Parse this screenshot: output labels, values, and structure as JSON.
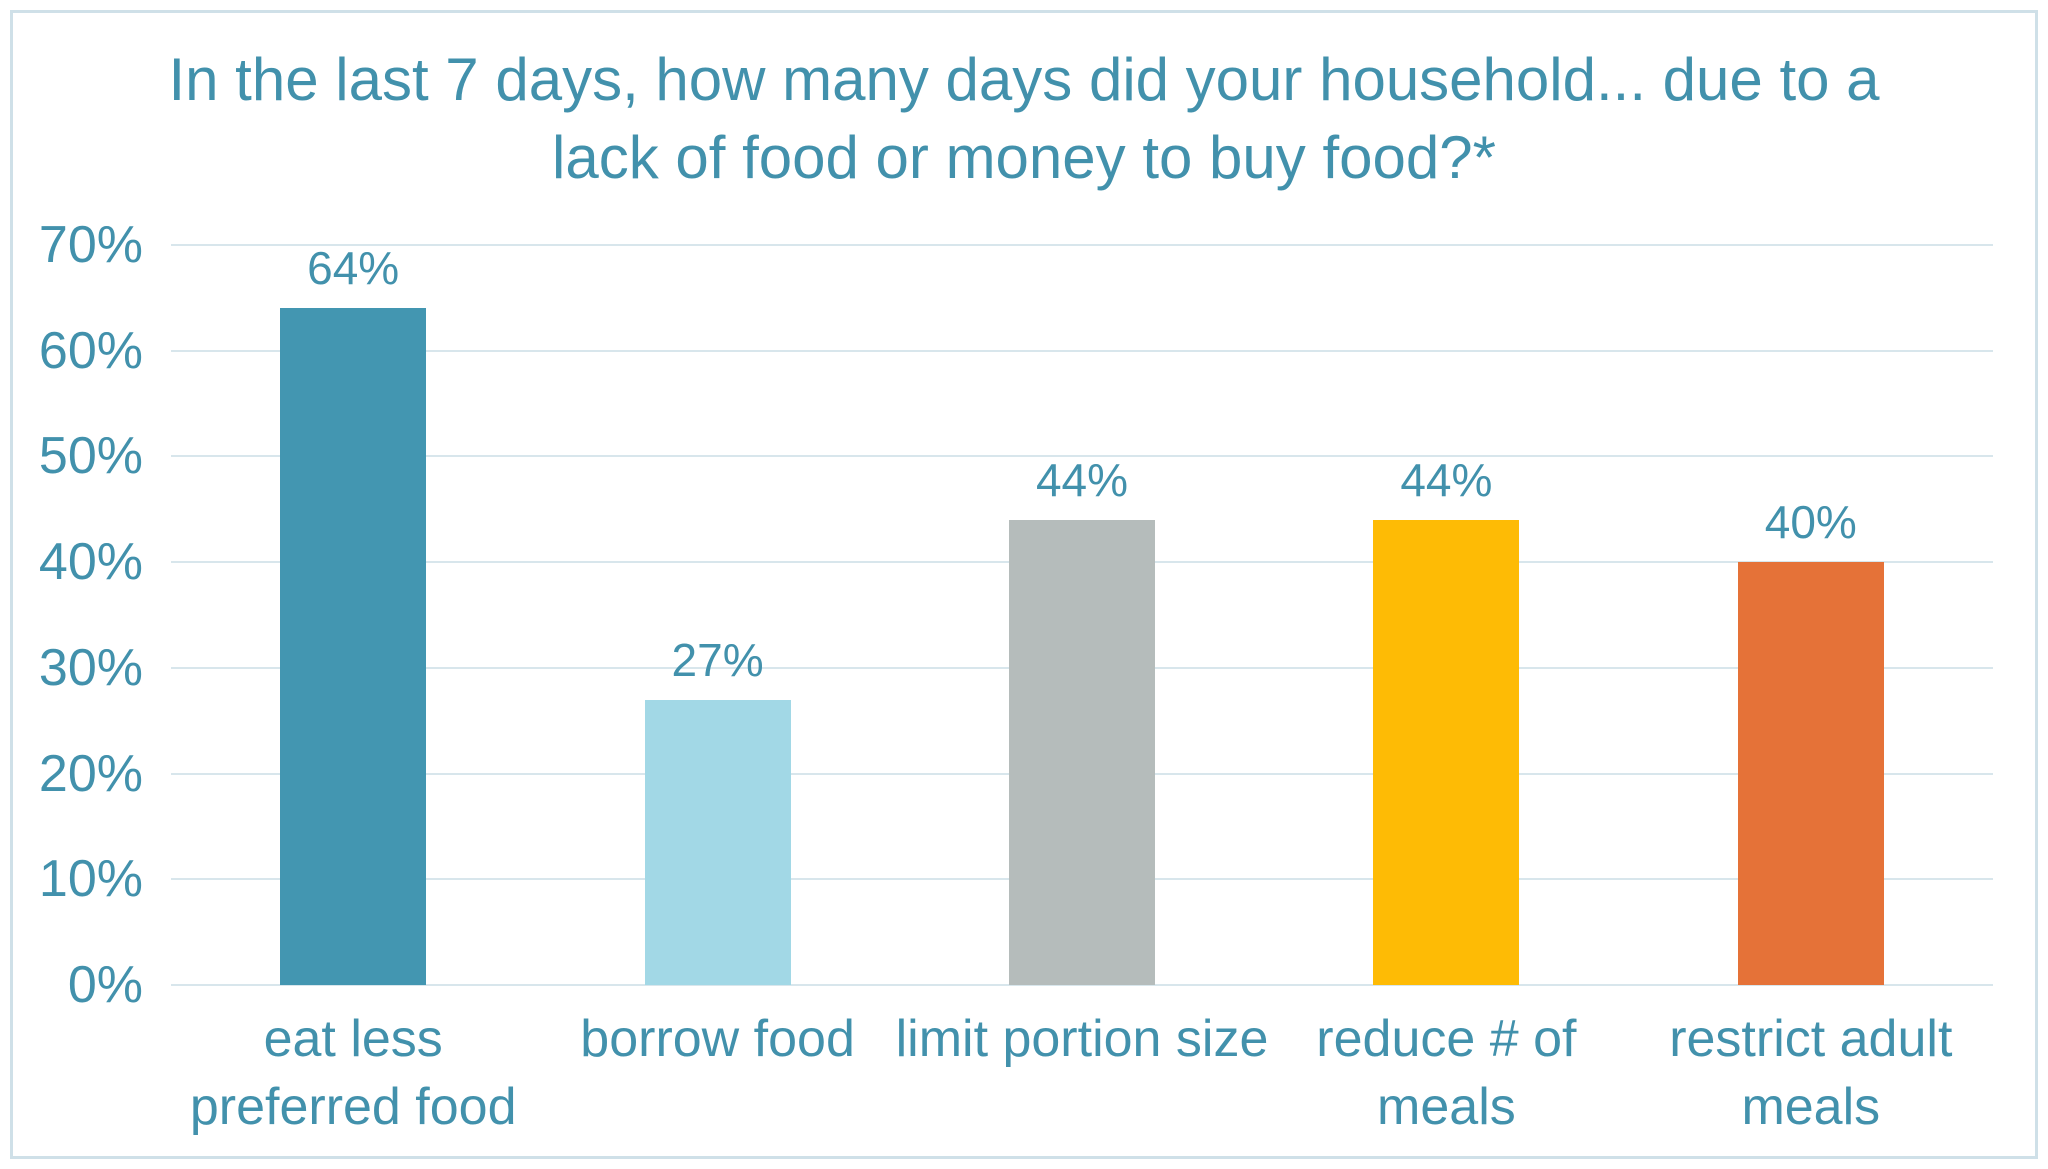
{
  "chart_data": {
    "type": "bar",
    "title": "In the last 7 days, how many days did your household... due to a lack of food or money to buy food?*",
    "title_lines": [
      "In the last 7 days, how many days did your household... due to a",
      "lack of food or money to buy food?*"
    ],
    "categories": [
      "eat less preferred food",
      "borrow food",
      "limit portion size",
      "reduce # of meals",
      "restrict adult meals"
    ],
    "category_lines": [
      [
        "eat less",
        "preferred food"
      ],
      [
        "borrow food"
      ],
      [
        "limit portion size"
      ],
      [
        "reduce # of",
        "meals"
      ],
      [
        "restrict adult",
        "meals"
      ]
    ],
    "values": [
      64,
      27,
      44,
      44,
      40
    ],
    "value_labels": [
      "64%",
      "27%",
      "44%",
      "44%",
      "40%"
    ],
    "bar_colors": [
      "#4396B1",
      "#A2D8E6",
      "#B5BCBB",
      "#FEBB05",
      "#E57238"
    ],
    "xlabel": "",
    "ylabel": "",
    "ylim": [
      0,
      70
    ],
    "ytick_step": 10,
    "ytick_labels": [
      "0%",
      "10%",
      "20%",
      "30%",
      "40%",
      "50%",
      "60%",
      "70%"
    ],
    "grid": true,
    "legend": "none"
  },
  "style": {
    "text_color": "#4291AC",
    "gridline_color": "#D8E6EC",
    "frame_border_color": "#CFE0E8",
    "background_color": "#FFFFFF"
  }
}
